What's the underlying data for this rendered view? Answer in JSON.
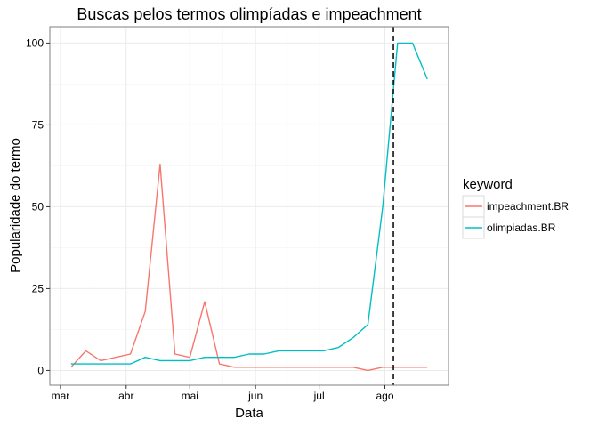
{
  "chart_data": {
    "type": "line",
    "title": "Buscas pelos termos olimpíadas e impeachment",
    "xlabel": "Data",
    "ylabel": "Popularidade do termo",
    "x_ticks": [
      {
        "label": "mar",
        "date": "2016-03-01"
      },
      {
        "label": "abr",
        "date": "2016-04-01"
      },
      {
        "label": "mai",
        "date": "2016-05-01"
      },
      {
        "label": "jun",
        "date": "2016-06-01"
      },
      {
        "label": "jul",
        "date": "2016-07-01"
      },
      {
        "label": "ago",
        "date": "2016-08-01"
      }
    ],
    "xlim": [
      "2016-02-25",
      "2016-08-31"
    ],
    "y_ticks": [
      0,
      25,
      50,
      75,
      100
    ],
    "ylim": [
      -4.5,
      105
    ],
    "grid": true,
    "legend": {
      "title": "keyword",
      "position": "right"
    },
    "vline": {
      "date": "2016-08-05",
      "style": "dashed"
    },
    "x": [
      "2016-03-06",
      "2016-03-13",
      "2016-03-20",
      "2016-03-27",
      "2016-04-03",
      "2016-04-10",
      "2016-04-17",
      "2016-04-24",
      "2016-05-01",
      "2016-05-08",
      "2016-05-15",
      "2016-05-22",
      "2016-05-29",
      "2016-06-05",
      "2016-06-12",
      "2016-06-19",
      "2016-06-26",
      "2016-07-03",
      "2016-07-10",
      "2016-07-17",
      "2016-07-24",
      "2016-07-31",
      "2016-08-07",
      "2016-08-14",
      "2016-08-21"
    ],
    "series": [
      {
        "name": "impeachment.BR",
        "color": "#F8766D",
        "values": [
          1,
          6,
          3,
          4,
          5,
          18,
          63,
          5,
          4,
          21,
          2,
          1,
          1,
          1,
          1,
          1,
          1,
          1,
          1,
          1,
          0,
          1,
          1,
          1,
          1
        ]
      },
      {
        "name": "olimpiadas.BR",
        "color": "#00BFC4",
        "values": [
          2,
          2,
          2,
          2,
          2,
          4,
          3,
          3,
          3,
          4,
          4,
          4,
          5,
          5,
          6,
          6,
          6,
          6,
          7,
          10,
          14,
          50,
          100,
          100,
          89
        ]
      }
    ]
  }
}
